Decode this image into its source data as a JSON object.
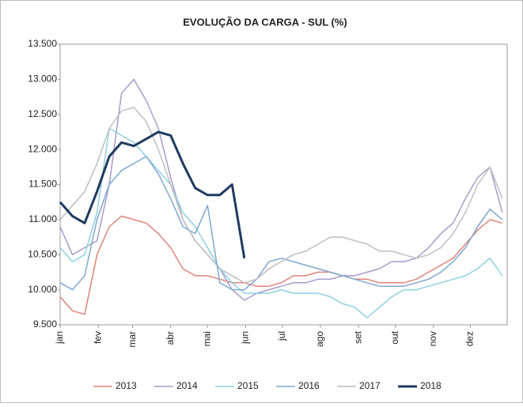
{
  "chart_data": {
    "type": "line",
    "title": "EVOLUÇÃO DA CARGA - SUL (%)",
    "x": [
      1,
      11,
      21,
      31,
      41,
      51,
      61,
      71,
      81,
      91,
      101,
      111,
      121,
      131,
      141,
      151,
      161,
      171,
      181,
      191,
      201,
      211,
      221,
      231,
      241,
      251,
      261,
      271,
      281,
      291,
      301,
      311,
      321,
      331,
      341,
      351,
      361
    ],
    "xlim": [
      1,
      365
    ],
    "xticks": [
      {
        "value": 1,
        "label": "jan"
      },
      {
        "value": 32,
        "label": "fev"
      },
      {
        "value": 60,
        "label": "mar"
      },
      {
        "value": 91,
        "label": "abr"
      },
      {
        "value": 121,
        "label": "mai"
      },
      {
        "value": 152,
        "label": "jun"
      },
      {
        "value": 182,
        "label": "jul"
      },
      {
        "value": 213,
        "label": "ago"
      },
      {
        "value": 244,
        "label": "set"
      },
      {
        "value": 274,
        "label": "out"
      },
      {
        "value": 305,
        "label": "nov"
      },
      {
        "value": 335,
        "label": "dez"
      }
    ],
    "ylim": [
      9500,
      13500
    ],
    "yticks": [
      {
        "value": 9500,
        "label": "9.500"
      },
      {
        "value": 10000,
        "label": "10.000"
      },
      {
        "value": 10500,
        "label": "10.500"
      },
      {
        "value": 11000,
        "label": "11.000"
      },
      {
        "value": 11500,
        "label": "11.500"
      },
      {
        "value": 12000,
        "label": "12.000"
      },
      {
        "value": 12500,
        "label": "12.500"
      },
      {
        "value": 13000,
        "label": "13.000"
      },
      {
        "value": 13500,
        "label": "13.500"
      }
    ],
    "legend": "bottom",
    "series": [
      {
        "name": "2013",
        "color": "#e0837a",
        "width": 1.5,
        "values": [
          9900,
          9700,
          9650,
          10500,
          10900,
          11050,
          11000,
          10950,
          10800,
          10600,
          10300,
          10200,
          10200,
          10150,
          10100,
          10100,
          10050,
          10050,
          10100,
          10200,
          10200,
          10250,
          10250,
          10200,
          10150,
          10150,
          10100,
          10100,
          10100,
          10150,
          10250,
          10350,
          10450,
          10650,
          10850,
          11000,
          10950
        ]
      },
      {
        "name": "2014",
        "color": "#a99bcc",
        "width": 1.5,
        "values": [
          10900,
          10500,
          10600,
          10700,
          11500,
          12800,
          13000,
          12700,
          12300,
          11600,
          11000,
          10700,
          10500,
          10300,
          10000,
          9850,
          9950,
          10000,
          10050,
          10100,
          10100,
          10150,
          10150,
          10200,
          10200,
          10250,
          10300,
          10400,
          10400,
          10450,
          10600,
          10800,
          10950,
          11300,
          11600,
          11750,
          11100
        ]
      },
      {
        "name": "2015",
        "color": "#8fd0e0",
        "width": 1.5,
        "values": [
          10600,
          10400,
          10500,
          11100,
          12300,
          12200,
          12100,
          11900,
          11700,
          11500,
          11100,
          10900,
          10600,
          10300,
          10100,
          9950,
          9950,
          9950,
          10000,
          9950,
          9950,
          9950,
          9900,
          9800,
          9750,
          9600,
          9750,
          9900,
          10000,
          10000,
          10050,
          10100,
          10150,
          10200,
          10300,
          10450,
          10200
        ]
      },
      {
        "name": "2016",
        "color": "#7ea7d3",
        "width": 1.5,
        "values": [
          10100,
          10000,
          10200,
          11000,
          11500,
          11700,
          11800,
          11900,
          11650,
          11300,
          10900,
          10800,
          11200,
          10100,
          10000,
          10000,
          10150,
          10400,
          10450,
          10400,
          10350,
          10300,
          10250,
          10200,
          10150,
          10100,
          10050,
          10050,
          10050,
          10100,
          10150,
          10250,
          10400,
          10600,
          10900,
          11150,
          11000
        ]
      },
      {
        "name": "2017",
        "color": "#bfbfbf",
        "width": 1.5,
        "values": [
          11000,
          11200,
          11400,
          11800,
          12300,
          12550,
          12600,
          12400,
          12000,
          11500,
          11000,
          10700,
          10500,
          10300,
          10200,
          10100,
          10150,
          10300,
          10400,
          10500,
          10550,
          10650,
          10750,
          10750,
          10700,
          10650,
          10550,
          10550,
          10500,
          10450,
          10500,
          10600,
          10800,
          11100,
          11500,
          11750,
          11300
        ]
      },
      {
        "name": "2018",
        "color": "#1f3a5f",
        "width": 3,
        "values": [
          11250,
          11050,
          10950,
          11400,
          11900,
          12100,
          12050,
          12150,
          12250,
          12200,
          11800,
          11450,
          11350,
          11350,
          11500,
          10450,
          null,
          null,
          null,
          null,
          null,
          null,
          null,
          null,
          null,
          null,
          null,
          null,
          null,
          null,
          null,
          null,
          null,
          null,
          null,
          null,
          null
        ]
      }
    ]
  }
}
